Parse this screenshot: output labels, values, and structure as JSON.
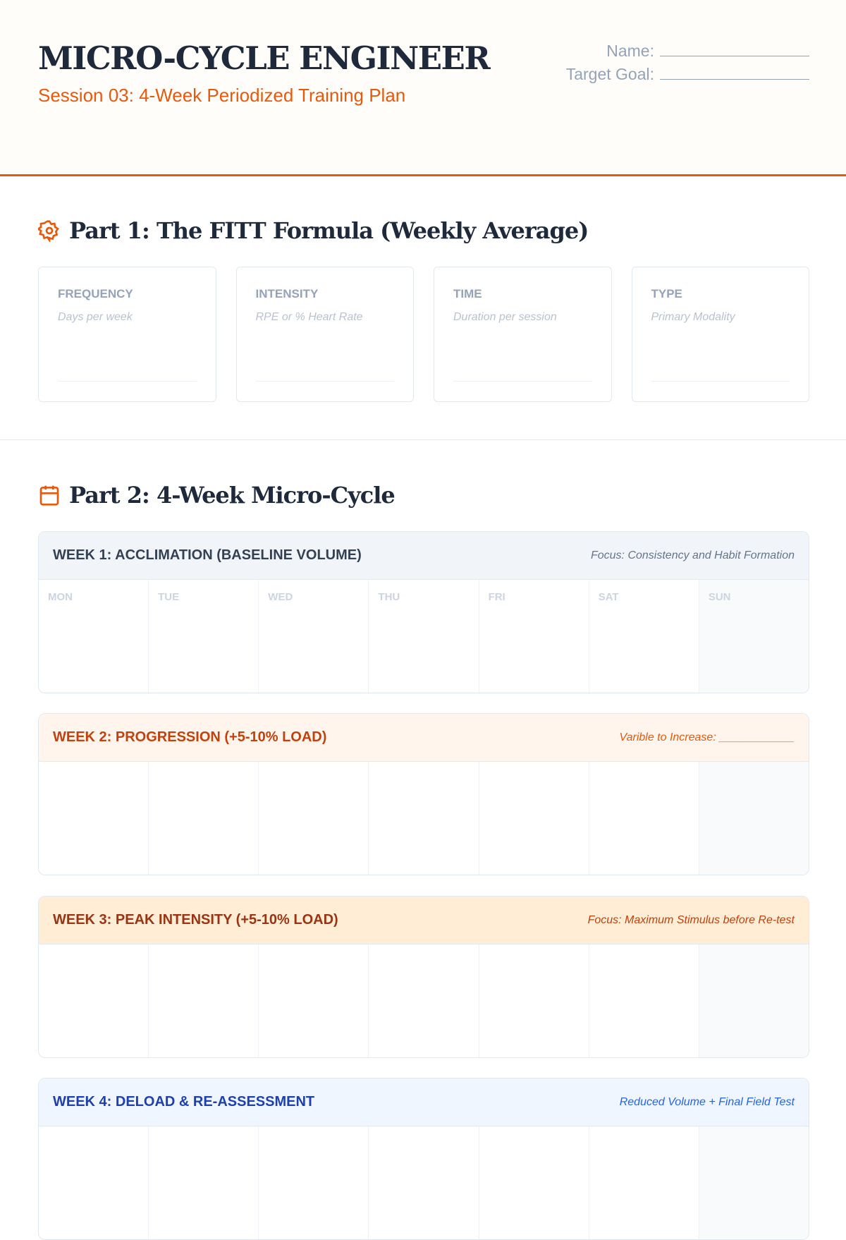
{
  "header": {
    "title": "MICRO-CYCLE ENGINEER",
    "subtitle": "Session 03: 4-Week Periodized Training Plan",
    "name_label": "Name:",
    "goal_label": "Target Goal:"
  },
  "part1": {
    "heading": "Part 1: The FITT Formula (Weekly Average)",
    "icon": "gear-icon",
    "cards": [
      {
        "label": "FREQUENCY",
        "hint": "Days per week"
      },
      {
        "label": "INTENSITY",
        "hint": "RPE or % Heart Rate"
      },
      {
        "label": "TIME",
        "hint": "Duration per session"
      },
      {
        "label": "TYPE",
        "hint": "Primary Modality"
      }
    ]
  },
  "part2": {
    "heading": "Part 2: 4-Week Micro-Cycle",
    "icon": "calendar-icon",
    "days": [
      "MON",
      "TUE",
      "WED",
      "THU",
      "FRI",
      "SAT",
      "SUN"
    ],
    "weeks": [
      {
        "title": "WEEK 1: ACCLIMATION (BASELINE VOLUME)",
        "focus": "Focus: Consistency and Habit Formation",
        "bg": "#f1f5f9",
        "color": "#334155",
        "focus_color": "#64748b"
      },
      {
        "title": "WEEK 2: PROGRESSION (+5-10% LOAD)",
        "focus": "Varible to Increase: ____________",
        "bg": "#fff5ed",
        "color": "#c2410c",
        "focus_color": "#ea580c"
      },
      {
        "title": "WEEK 3: PEAK INTENSITY (+5-10% LOAD)",
        "focus": "Focus: Maximum Stimulus before Re-test",
        "bg": "#ffedd5",
        "color": "#9a3412",
        "focus_color": "#c2410c"
      },
      {
        "title": "WEEK 4: DELOAD & RE-ASSESSMENT",
        "focus": "Reduced Volume + Final Field Test",
        "bg": "#eff6ff",
        "color": "#1e40af",
        "focus_color": "#2563eb"
      }
    ]
  }
}
